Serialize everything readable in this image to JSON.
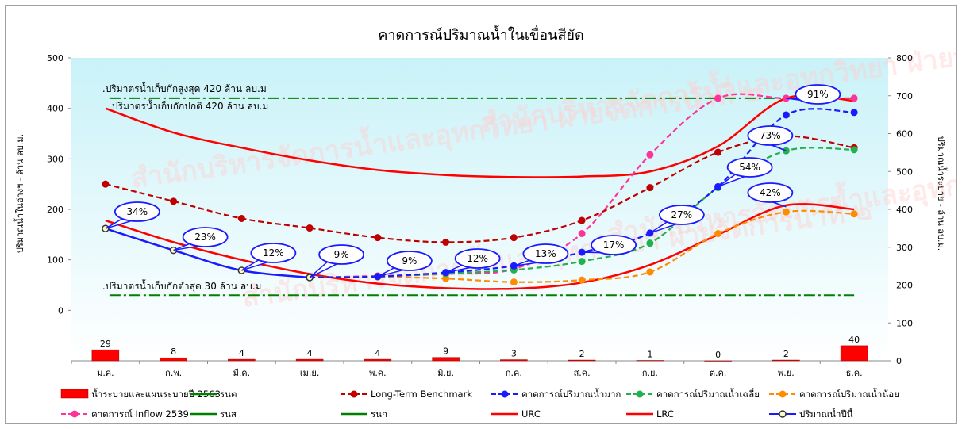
{
  "chart_data": {
    "type": "line",
    "title": "คาดการณ์ปริมาณน้ำในเขื่อนสียัด",
    "ylabel_left": "ปริมาณน้ำในอ่างฯ - ล้าน ลบ.ม.",
    "ylabel_right": "ปริมาณน้ำระบาย - ล้าน ลบ.ม.",
    "ylim_left": [
      -100,
      500
    ],
    "ylim_right": [
      0,
      800
    ],
    "left_ticks": [
      0,
      100,
      200,
      300,
      400,
      500
    ],
    "right_ticks": [
      0,
      100,
      200,
      300,
      400,
      500,
      600,
      700,
      800
    ],
    "categories": [
      "ม.ค.",
      "ก.พ.",
      "มี.ค.",
      "เม.ย.",
      "พ.ค.",
      "มิ.ย.",
      "ก.ค.",
      "ส.ค.",
      "ก.ย.",
      "ต.ค.",
      "พ.ย.",
      "ธ.ค."
    ],
    "bars": {
      "name": "น้ำระบายและแผนระบายปี 2563",
      "axis": "right",
      "color": "#ff0000",
      "values": [
        29,
        8,
        4,
        4,
        4,
        9,
        3,
        2,
        1,
        0,
        2,
        40
      ]
    },
    "series": [
      {
        "name": "Long-Term Benchmark",
        "color": "#c00000",
        "style": "dash-marker",
        "values": [
          250,
          216,
          182,
          163,
          144,
          135,
          144,
          178,
          243,
          313,
          345,
          322
        ]
      },
      {
        "name": "คาดการณ์ปริมาณน้ำมาก",
        "color": "#1a1aff",
        "style": "dash-marker",
        "values": [
          null,
          null,
          null,
          65,
          67,
          75,
          88,
          115,
          153,
          245,
          387,
          392
        ]
      },
      {
        "name": "คาดการณ์ปริมาณน้ำเฉลี่ย",
        "color": "#22b14c",
        "style": "dash-marker",
        "values": [
          null,
          null,
          null,
          65,
          67,
          73,
          80,
          97,
          133,
          243,
          316,
          318
        ]
      },
      {
        "name": "คาดการณ์ปริมาณน้ำน้อย",
        "color": "#ff8c00",
        "style": "dash-marker",
        "values": [
          null,
          null,
          null,
          65,
          66,
          63,
          56,
          60,
          76,
          152,
          195,
          191
        ]
      },
      {
        "name": "คาดการณ์ Inflow 2539",
        "color": "#ff3399",
        "style": "dash-marker",
        "values": [
          null,
          null,
          null,
          65,
          68,
          72,
          82,
          152,
          308,
          420,
          420,
          420
        ]
      },
      {
        "name": "URC",
        "color": "#ff0000",
        "style": "solid",
        "values": [
          400,
          352,
          322,
          297,
          278,
          268,
          264,
          265,
          275,
          325,
          420,
          415
        ]
      },
      {
        "name": "LRC",
        "color": "#ff0000",
        "style": "solid",
        "values": [
          178,
          135,
          100,
          72,
          53,
          44,
          43,
          55,
          90,
          150,
          208,
          200
        ]
      },
      {
        "name": "ปริมาณน้ำปีนี้",
        "color": "#1a1aff",
        "style": "solid-hollow-marker",
        "values": [
          162,
          119,
          79,
          65,
          null,
          null,
          null,
          null,
          null,
          null,
          null,
          null
        ]
      }
    ],
    "reference_lines": [
      {
        "name": "รนส",
        "value": 420,
        "color": "#008000",
        "label": ".ปริมาตรน้ำเก็บกักสูงสุด 420 ล้าน ลบ.ม"
      },
      {
        "name": "รนก",
        "value": 420,
        "color": "#008000",
        "label": "ปริมาตรน้ำเก็บกักปกติ 420 ล้าน ลบ.ม"
      },
      {
        "name": "รนต",
        "value": 30,
        "color": "#008000",
        "label": ".ปริมาตรน้ำเก็บกักต่ำสุด 30 ล้าน ลบ.ม"
      }
    ],
    "callouts": [
      {
        "month": "ม.ค.",
        "text": "34%"
      },
      {
        "month": "ก.พ.",
        "text": "23%"
      },
      {
        "month": "มี.ค.",
        "text": "12%"
      },
      {
        "month": "เม.ย.",
        "text": "9%"
      },
      {
        "month": "พ.ค.",
        "text": "9%"
      },
      {
        "month": "มิ.ย.",
        "text": "12%"
      },
      {
        "month": "ก.ค.",
        "text": "13%"
      },
      {
        "month": "ส.ค.",
        "text": "17%"
      },
      {
        "month": "ก.ย.",
        "text": "27%"
      },
      {
        "month": "ต.ค.",
        "text": "54%"
      },
      {
        "month": "พ.ย.",
        "text": "91%"
      },
      {
        "month": "ธ.ค.",
        "text": "73%"
      },
      {
        "month": "ธ.ค.",
        "text": "42%"
      }
    ],
    "legend": [
      {
        "label": "น้ำระบายและแผนระบายปี 2563",
        "color": "#ff0000",
        "kind": "bar"
      },
      {
        "label": "รนต",
        "color": "#008000",
        "kind": "line"
      },
      {
        "label": "Long-Term Benchmark",
        "color": "#c00000",
        "kind": "dash-marker"
      },
      {
        "label": "คาดการณ์ปริมาณน้ำมาก",
        "color": "#1a1aff",
        "kind": "dash-marker"
      },
      {
        "label": "คาดการณ์ปริมาณน้ำเฉลี่ย",
        "color": "#22b14c",
        "kind": "dash-marker"
      },
      {
        "label": "คาดการณ์ปริมาณน้ำน้อย",
        "color": "#ff8c00",
        "kind": "dash-marker"
      },
      {
        "label": "คาดการณ์ Inflow 2539",
        "color": "#ff3399",
        "kind": "dash-marker"
      },
      {
        "label": "รนส",
        "color": "#008000",
        "kind": "line"
      },
      {
        "label": "รนก",
        "color": "#008000",
        "kind": "line"
      },
      {
        "label": "URC",
        "color": "#ff0000",
        "kind": "line"
      },
      {
        "label": "LRC",
        "color": "#ff0000",
        "kind": "line"
      },
      {
        "label": "ปริมาณน้ำปีนี้",
        "color": "#1a1aff",
        "kind": "hollow-marker"
      }
    ],
    "watermark": "สำนักบริหารจัดการน้ำและอุทกวิทยา ฝ่ายจัดการน้ำที่ ๒",
    "legend_position": "bottom",
    "grid": false
  }
}
